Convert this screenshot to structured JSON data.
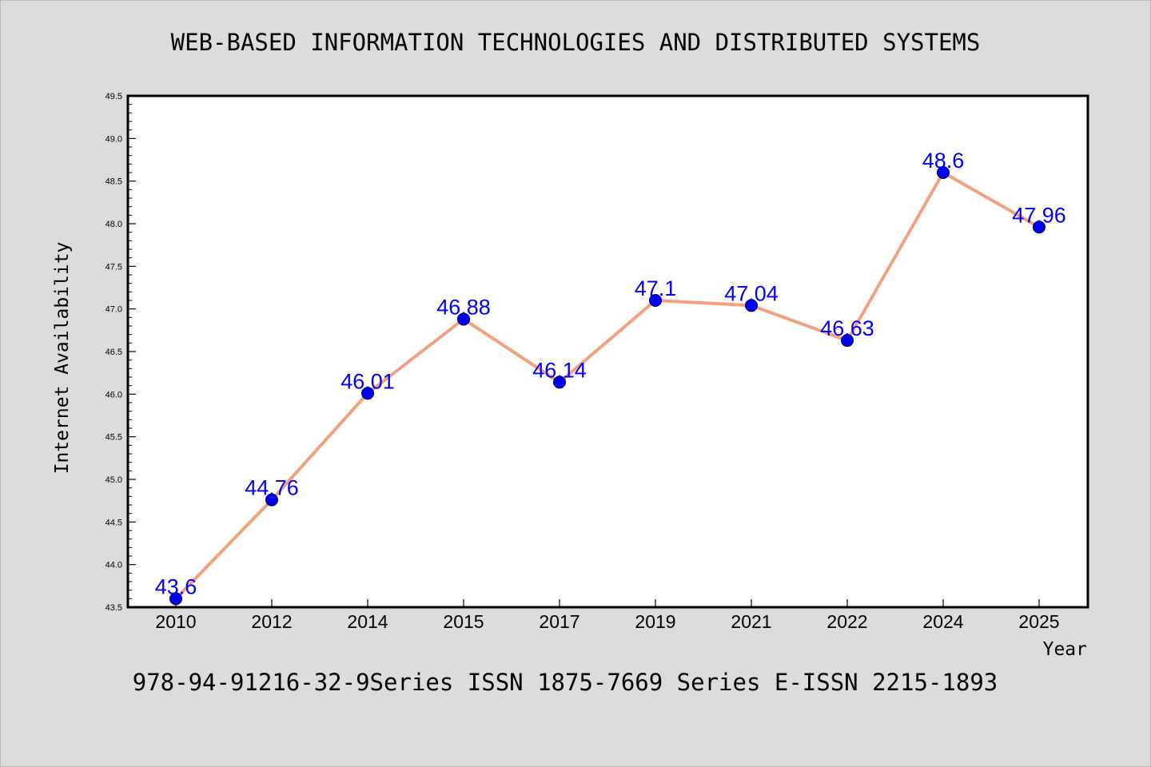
{
  "header": {
    "title": "WEB-BASED INFORMATION TECHNOLOGIES AND DISTRIBUTED SYSTEMS"
  },
  "footer": {
    "text": "978-94-91216-32-9Series ISSN 1875-7669 Series E-ISSN 2215-1893"
  },
  "colors": {
    "background": "#dcdcdc",
    "plot_background": "#ffffff",
    "line": "#f4a07f",
    "marker": "#0000ff",
    "data_label": "#0000ff"
  },
  "chart_data": {
    "type": "line",
    "xlabel": "Year",
    "ylabel": "Internet Availability",
    "categories": [
      "2010",
      "2012",
      "2014",
      "2015",
      "2017",
      "2019",
      "2021",
      "2022",
      "2024",
      "2025"
    ],
    "series": [
      {
        "values": [
          43.6,
          44.76,
          46.01,
          46.88,
          46.14,
          47.1,
          47.04,
          46.63,
          48.6,
          47.96
        ],
        "labels": [
          "43.6",
          "44.76",
          "46.01",
          "46.88",
          "46.14",
          "47.1",
          "47.04",
          "46.63",
          "48.6",
          "47.96"
        ]
      }
    ],
    "ylim": [
      43.5,
      49.5
    ],
    "yticks": [
      "43.5",
      "44.0",
      "44.5",
      "45.0",
      "45.5",
      "46.0",
      "46.5",
      "47.0",
      "47.5",
      "48.0",
      "48.5",
      "49.0",
      "49.5"
    ],
    "grid": false,
    "legend": false
  }
}
